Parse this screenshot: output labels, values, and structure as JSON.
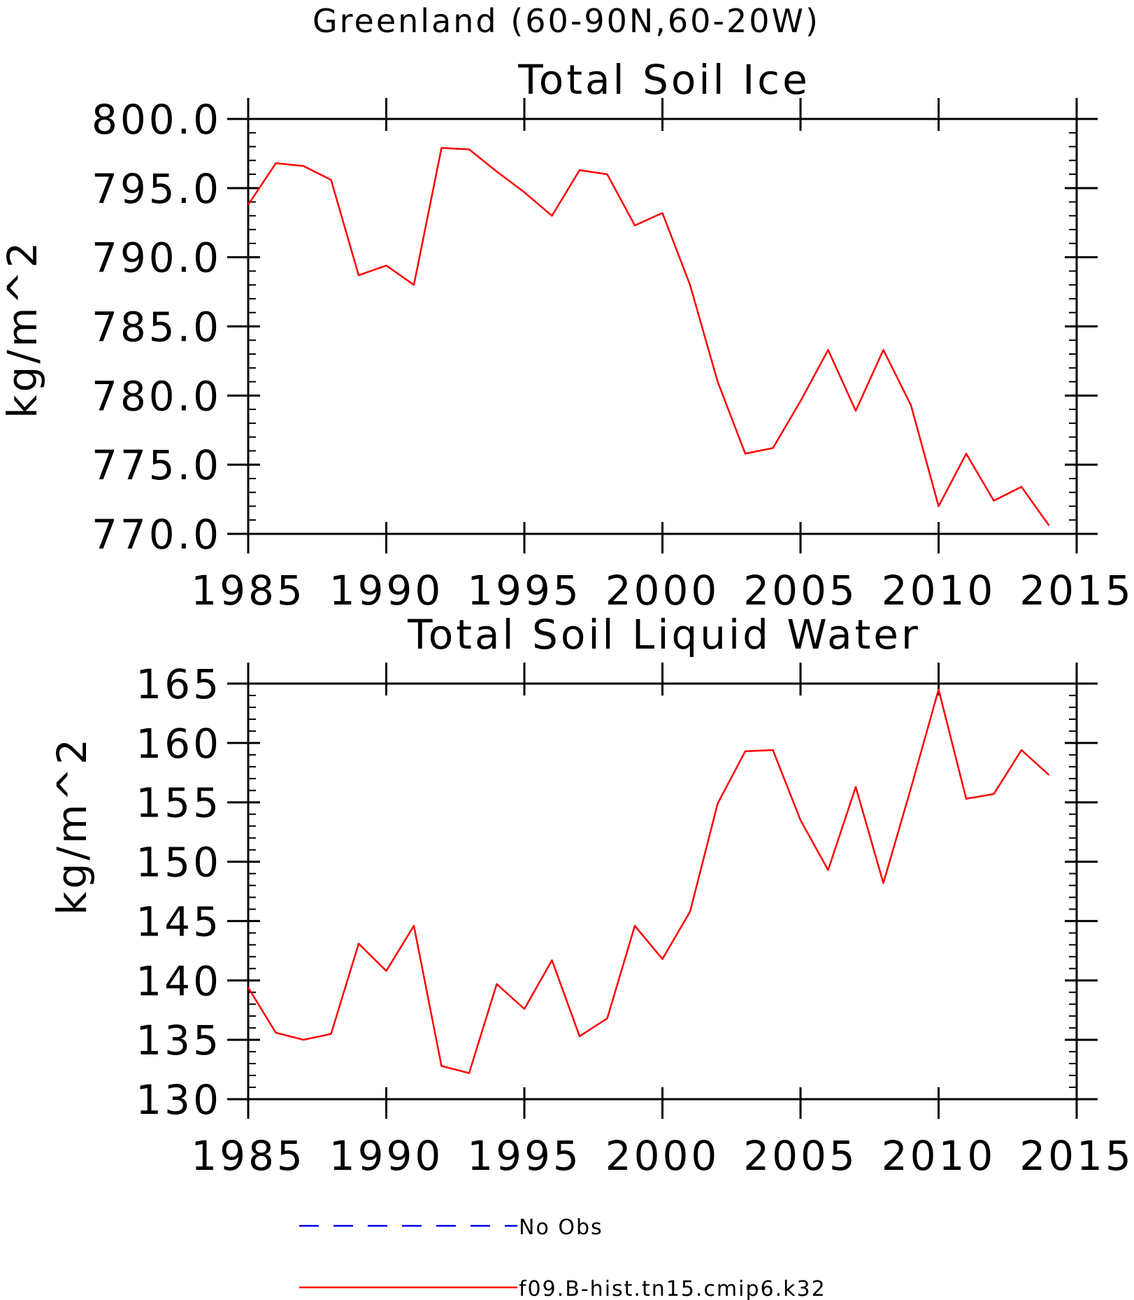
{
  "suptitle": "Greenland (60-90N,60-20W)",
  "colors": {
    "model": "#ff0000",
    "obs": "#0000ff",
    "axis": "#000000"
  },
  "chart_data": [
    {
      "type": "line",
      "title": "Total Soil Ice",
      "ylabel": "kg/m^2",
      "xlabel": "",
      "xlim": [
        1985,
        2015
      ],
      "ylim": [
        770,
        800
      ],
      "xticks": [
        1985,
        1990,
        1995,
        2000,
        2005,
        2010,
        2015
      ],
      "yticks": [
        770,
        775,
        780,
        785,
        790,
        795,
        800
      ],
      "ytick_labels": [
        "770.0",
        "775.0",
        "780.0",
        "785.0",
        "790.0",
        "795.0",
        "800.0"
      ],
      "grid": false,
      "series": [
        {
          "name": "f09.B-hist.tn15.cmip6.k32",
          "color": "#ff0000",
          "x": [
            1985,
            1986,
            1987,
            1988,
            1989,
            1990,
            1991,
            1992,
            1993,
            1994,
            1995,
            1996,
            1997,
            1998,
            1999,
            2000,
            2001,
            2002,
            2003,
            2004,
            2005,
            2006,
            2007,
            2008,
            2009,
            2010,
            2011,
            2012,
            2013,
            2014
          ],
          "y": [
            793.8,
            796.8,
            796.6,
            795.6,
            788.7,
            789.4,
            788.0,
            797.9,
            797.8,
            796.2,
            794.7,
            793.0,
            796.3,
            796.0,
            792.3,
            793.2,
            788.0,
            781.0,
            775.8,
            776.2,
            779.6,
            783.3,
            778.9,
            783.3,
            779.3,
            772.0,
            775.8,
            772.4,
            773.4,
            770.6
          ]
        }
      ]
    },
    {
      "type": "line",
      "title": "Total Soil Liquid Water",
      "ylabel": "kg/m^2",
      "xlabel": "",
      "xlim": [
        1985,
        2015
      ],
      "ylim": [
        130,
        165
      ],
      "xticks": [
        1985,
        1990,
        1995,
        2000,
        2005,
        2010,
        2015
      ],
      "yticks": [
        130,
        135,
        140,
        145,
        150,
        155,
        160,
        165
      ],
      "ytick_labels": [
        "130",
        "135",
        "140",
        "145",
        "150",
        "155",
        "160",
        "165"
      ],
      "grid": false,
      "series": [
        {
          "name": "f09.B-hist.tn15.cmip6.k32",
          "color": "#ff0000",
          "x": [
            1985,
            1986,
            1987,
            1988,
            1989,
            1990,
            1991,
            1992,
            1993,
            1994,
            1995,
            1996,
            1997,
            1998,
            1999,
            2000,
            2001,
            2002,
            2003,
            2004,
            2005,
            2006,
            2007,
            2008,
            2009,
            2010,
            2011,
            2012,
            2013,
            2014
          ],
          "y": [
            139.4,
            135.6,
            135.0,
            135.5,
            143.1,
            140.8,
            144.6,
            132.8,
            132.2,
            139.7,
            137.6,
            141.7,
            135.3,
            136.8,
            144.6,
            141.8,
            145.8,
            154.9,
            159.3,
            159.4,
            153.5,
            149.3,
            156.3,
            148.2,
            156.2,
            164.5,
            155.3,
            155.7,
            159.4,
            157.3
          ]
        }
      ]
    }
  ],
  "legend": {
    "placement": "bottom",
    "entries": [
      {
        "label": "No Obs",
        "color": "#0000ff",
        "style": "dashed"
      },
      {
        "label": "f09.B-hist.tn15.cmip6.k32",
        "color": "#ff0000",
        "style": "solid"
      }
    ]
  }
}
